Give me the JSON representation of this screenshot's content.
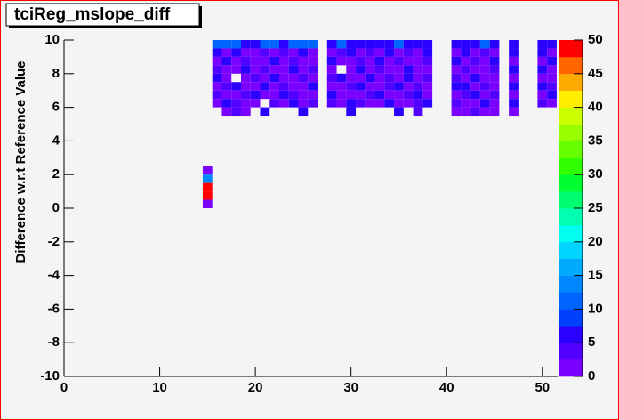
{
  "chart_data": {
    "type": "heatmap",
    "title": "tciReg_mslope_diff",
    "ylabel": "Difference w.r.t Reference Value",
    "xlim": [
      0,
      51.6
    ],
    "xticks": [
      0,
      10,
      20,
      30,
      40,
      50
    ],
    "ylim": [
      -10,
      10
    ],
    "yticks": [
      -10,
      -8,
      -6,
      -4,
      -2,
      0,
      2,
      4,
      6,
      8,
      10
    ],
    "zlim": [
      0,
      50
    ],
    "zticks": [
      0,
      5,
      10,
      15,
      20,
      25,
      30,
      35,
      40,
      45,
      50
    ],
    "xbin": 1,
    "ybin": 0.5,
    "palette": [
      "#7a00ff",
      "#5200ff",
      "#2a00ff",
      "#0040ff",
      "#0064ff",
      "#0088ff",
      "#00aaff",
      "#00d4ff",
      "#00fff0",
      "#00ffb0",
      "#00ff70",
      "#00ff30",
      "#30ff00",
      "#66ff00",
      "#99ff00",
      "#ccff00",
      "#ffee00",
      "#ffaa00",
      "#ff6600",
      "#ff0000"
    ],
    "cells": [
      [
        15,
        2.25,
        2
      ],
      [
        15,
        1.75,
        13
      ],
      [
        15,
        1.25,
        49
      ],
      [
        15,
        0.75,
        49
      ],
      [
        15,
        0.25,
        2
      ],
      [
        16,
        9.75,
        11
      ],
      [
        17,
        9.75,
        11
      ],
      [
        18,
        9.75,
        11
      ],
      [
        19,
        9.75,
        6
      ],
      [
        20,
        9.75,
        6
      ],
      [
        21,
        9.75,
        11
      ],
      [
        22,
        9.75,
        11
      ],
      [
        23,
        9.75,
        6
      ],
      [
        24,
        9.75,
        11
      ],
      [
        25,
        9.75,
        11
      ],
      [
        26,
        9.75,
        11
      ],
      [
        28,
        9.75,
        6
      ],
      [
        29,
        9.75,
        11
      ],
      [
        30,
        9.75,
        6
      ],
      [
        31,
        9.75,
        6
      ],
      [
        32,
        9.75,
        6
      ],
      [
        33,
        9.75,
        6
      ],
      [
        34,
        9.75,
        6
      ],
      [
        35,
        9.75,
        11
      ],
      [
        36,
        9.75,
        6
      ],
      [
        37,
        9.75,
        6
      ],
      [
        38,
        9.75,
        6
      ],
      [
        41,
        9.75,
        6
      ],
      [
        42,
        9.75,
        6
      ],
      [
        43,
        9.75,
        6
      ],
      [
        44,
        9.75,
        11
      ],
      [
        45,
        9.75,
        6
      ],
      [
        47,
        9.75,
        6
      ],
      [
        50,
        9.75,
        6
      ],
      [
        51,
        9.75,
        6
      ],
      [
        16,
        9.25,
        6
      ],
      [
        17,
        9.25,
        2
      ],
      [
        18,
        9.25,
        6
      ],
      [
        19,
        9.25,
        2
      ],
      [
        20,
        9.25,
        2
      ],
      [
        21,
        9.25,
        4
      ],
      [
        22,
        9.25,
        2
      ],
      [
        23,
        9.25,
        4
      ],
      [
        24,
        9.25,
        2
      ],
      [
        25,
        9.25,
        6
      ],
      [
        26,
        9.25,
        2
      ],
      [
        28,
        9.25,
        2
      ],
      [
        29,
        9.25,
        4
      ],
      [
        30,
        9.25,
        6
      ],
      [
        31,
        9.25,
        2
      ],
      [
        32,
        9.25,
        4
      ],
      [
        33,
        9.25,
        2
      ],
      [
        34,
        9.25,
        6
      ],
      [
        35,
        9.25,
        2
      ],
      [
        36,
        9.25,
        4
      ],
      [
        37,
        9.25,
        2
      ],
      [
        38,
        9.25,
        6
      ],
      [
        41,
        9.25,
        2
      ],
      [
        42,
        9.25,
        6
      ],
      [
        43,
        9.25,
        2
      ],
      [
        44,
        9.25,
        4
      ],
      [
        45,
        9.25,
        2
      ],
      [
        47,
        9.25,
        6
      ],
      [
        50,
        9.25,
        6
      ],
      [
        51,
        9.25,
        2
      ],
      [
        16,
        8.75,
        2
      ],
      [
        17,
        8.75,
        6
      ],
      [
        18,
        8.75,
        2
      ],
      [
        19,
        8.75,
        4
      ],
      [
        20,
        8.75,
        2
      ],
      [
        21,
        8.75,
        2
      ],
      [
        22,
        8.75,
        6
      ],
      [
        23,
        8.75,
        2
      ],
      [
        24,
        8.75,
        4
      ],
      [
        25,
        8.75,
        2
      ],
      [
        26,
        8.75,
        2
      ],
      [
        28,
        8.75,
        6
      ],
      [
        29,
        8.75,
        2
      ],
      [
        30,
        8.75,
        2
      ],
      [
        31,
        8.75,
        4
      ],
      [
        32,
        8.75,
        2
      ],
      [
        33,
        8.75,
        6
      ],
      [
        34,
        8.75,
        2
      ],
      [
        35,
        8.75,
        4
      ],
      [
        36,
        8.75,
        2
      ],
      [
        37,
        8.75,
        2
      ],
      [
        38,
        8.75,
        4
      ],
      [
        41,
        8.75,
        6
      ],
      [
        42,
        8.75,
        2
      ],
      [
        43,
        8.75,
        4
      ],
      [
        44,
        8.75,
        2
      ],
      [
        45,
        8.75,
        6
      ],
      [
        47,
        8.75,
        2
      ],
      [
        50,
        8.75,
        2
      ],
      [
        51,
        8.75,
        6
      ],
      [
        16,
        8.25,
        4
      ],
      [
        17,
        8.25,
        2
      ],
      [
        18,
        8.25,
        2
      ],
      [
        19,
        8.25,
        6
      ],
      [
        20,
        8.25,
        2
      ],
      [
        21,
        8.25,
        4
      ],
      [
        22,
        8.25,
        2
      ],
      [
        23,
        8.25,
        2
      ],
      [
        24,
        8.25,
        6
      ],
      [
        25,
        8.25,
        2
      ],
      [
        26,
        8.25,
        4
      ],
      [
        28,
        8.25,
        2
      ],
      [
        30,
        8.25,
        2
      ],
      [
        31,
        8.25,
        6
      ],
      [
        32,
        8.25,
        2
      ],
      [
        33,
        8.25,
        4
      ],
      [
        34,
        8.25,
        2
      ],
      [
        35,
        8.25,
        2
      ],
      [
        36,
        8.25,
        6
      ],
      [
        37,
        8.25,
        2
      ],
      [
        38,
        8.25,
        2
      ],
      [
        41,
        8.25,
        2
      ],
      [
        42,
        8.25,
        4
      ],
      [
        43,
        8.25,
        2
      ],
      [
        44,
        8.25,
        2
      ],
      [
        45,
        8.25,
        4
      ],
      [
        47,
        8.25,
        6
      ],
      [
        50,
        8.25,
        6
      ],
      [
        51,
        8.25,
        2
      ],
      [
        16,
        7.75,
        6
      ],
      [
        17,
        7.75,
        2
      ],
      [
        19,
        7.75,
        2
      ],
      [
        20,
        7.75,
        4
      ],
      [
        21,
        7.75,
        2
      ],
      [
        22,
        7.75,
        6
      ],
      [
        23,
        7.75,
        2
      ],
      [
        24,
        7.75,
        2
      ],
      [
        25,
        7.75,
        4
      ],
      [
        26,
        7.75,
        2
      ],
      [
        28,
        7.75,
        4
      ],
      [
        29,
        7.75,
        6
      ],
      [
        30,
        7.75,
        2
      ],
      [
        31,
        7.75,
        2
      ],
      [
        32,
        7.75,
        6
      ],
      [
        33,
        7.75,
        2
      ],
      [
        34,
        7.75,
        4
      ],
      [
        35,
        7.75,
        2
      ],
      [
        36,
        7.75,
        6
      ],
      [
        37,
        7.75,
        2
      ],
      [
        38,
        7.75,
        4
      ],
      [
        41,
        7.75,
        4
      ],
      [
        42,
        7.75,
        2
      ],
      [
        43,
        7.75,
        6
      ],
      [
        44,
        7.75,
        2
      ],
      [
        45,
        7.75,
        2
      ],
      [
        47,
        7.75,
        2
      ],
      [
        50,
        7.75,
        2
      ],
      [
        51,
        7.75,
        2
      ],
      [
        16,
        7.25,
        2
      ],
      [
        17,
        7.25,
        4
      ],
      [
        18,
        7.25,
        6
      ],
      [
        19,
        7.25,
        2
      ],
      [
        20,
        7.25,
        2
      ],
      [
        21,
        7.25,
        6
      ],
      [
        22,
        7.25,
        2
      ],
      [
        23,
        7.25,
        4
      ],
      [
        24,
        7.25,
        2
      ],
      [
        25,
        7.25,
        2
      ],
      [
        26,
        7.25,
        6
      ],
      [
        28,
        7.25,
        2
      ],
      [
        29,
        7.25,
        2
      ],
      [
        30,
        7.25,
        4
      ],
      [
        31,
        7.25,
        6
      ],
      [
        32,
        7.25,
        2
      ],
      [
        33,
        7.25,
        2
      ],
      [
        34,
        7.25,
        4
      ],
      [
        35,
        7.25,
        6
      ],
      [
        36,
        7.25,
        2
      ],
      [
        37,
        7.25,
        4
      ],
      [
        38,
        7.25,
        2
      ],
      [
        41,
        7.25,
        6
      ],
      [
        42,
        7.25,
        6
      ],
      [
        43,
        7.25,
        2
      ],
      [
        44,
        7.25,
        4
      ],
      [
        45,
        7.25,
        2
      ],
      [
        47,
        7.25,
        6
      ],
      [
        50,
        7.25,
        6
      ],
      [
        51,
        7.25,
        4
      ],
      [
        16,
        6.75,
        4
      ],
      [
        17,
        6.75,
        2
      ],
      [
        18,
        6.75,
        2
      ],
      [
        19,
        6.75,
        4
      ],
      [
        20,
        6.75,
        6
      ],
      [
        21,
        6.75,
        2
      ],
      [
        22,
        6.75,
        2
      ],
      [
        23,
        6.75,
        6
      ],
      [
        24,
        6.75,
        4
      ],
      [
        25,
        6.75,
        2
      ],
      [
        26,
        6.75,
        2
      ],
      [
        28,
        6.75,
        6
      ],
      [
        29,
        6.75,
        2
      ],
      [
        30,
        6.75,
        2
      ],
      [
        31,
        6.75,
        2
      ],
      [
        32,
        6.75,
        4
      ],
      [
        33,
        6.75,
        6
      ],
      [
        34,
        6.75,
        2
      ],
      [
        35,
        6.75,
        2
      ],
      [
        36,
        6.75,
        4
      ],
      [
        37,
        6.75,
        6
      ],
      [
        38,
        6.75,
        2
      ],
      [
        41,
        6.75,
        2
      ],
      [
        42,
        6.75,
        4
      ],
      [
        43,
        6.75,
        6
      ],
      [
        44,
        6.75,
        2
      ],
      [
        45,
        6.75,
        4
      ],
      [
        47,
        6.75,
        2
      ],
      [
        50,
        6.75,
        2
      ],
      [
        51,
        6.75,
        6
      ],
      [
        16,
        6.25,
        2
      ],
      [
        17,
        6.25,
        6
      ],
      [
        18,
        6.25,
        4
      ],
      [
        19,
        6.25,
        2
      ],
      [
        20,
        6.25,
        2
      ],
      [
        22,
        6.25,
        4
      ],
      [
        23,
        6.25,
        2
      ],
      [
        24,
        6.25,
        6
      ],
      [
        25,
        6.25,
        2
      ],
      [
        26,
        6.25,
        4
      ],
      [
        28,
        6.25,
        4
      ],
      [
        29,
        6.25,
        2
      ],
      [
        30,
        6.25,
        6
      ],
      [
        31,
        6.25,
        4
      ],
      [
        32,
        6.25,
        2
      ],
      [
        33,
        6.25,
        2
      ],
      [
        34,
        6.25,
        6
      ],
      [
        35,
        6.25,
        2
      ],
      [
        36,
        6.25,
        2
      ],
      [
        37,
        6.25,
        4
      ],
      [
        38,
        6.25,
        6
      ],
      [
        41,
        6.25,
        4
      ],
      [
        42,
        6.25,
        2
      ],
      [
        43,
        6.25,
        2
      ],
      [
        44,
        6.25,
        6
      ],
      [
        45,
        6.25,
        2
      ],
      [
        47,
        6.25,
        6
      ],
      [
        50,
        6.25,
        4
      ],
      [
        51,
        6.25,
        2
      ],
      [
        17,
        5.75,
        2
      ],
      [
        18,
        5.75,
        4
      ],
      [
        19,
        5.75,
        2
      ],
      [
        21,
        5.75,
        6
      ],
      [
        25,
        5.75,
        6
      ],
      [
        30,
        5.75,
        6
      ],
      [
        35,
        5.75,
        6
      ],
      [
        37,
        5.75,
        4
      ],
      [
        41,
        5.75,
        2
      ],
      [
        42,
        5.75,
        2
      ],
      [
        43,
        5.75,
        4
      ],
      [
        44,
        5.75,
        2
      ],
      [
        45,
        5.75,
        2
      ],
      [
        47,
        5.75,
        2
      ]
    ]
  }
}
